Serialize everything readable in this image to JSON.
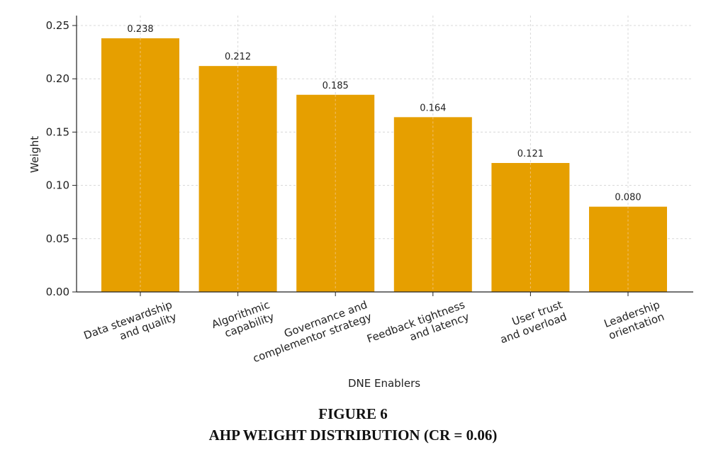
{
  "caption": {
    "figure_number": "FIGURE 6",
    "title": "AHP WEIGHT DISTRIBUTION (CR = 0.06)"
  },
  "chart_data": {
    "type": "bar",
    "categories": [
      [
        "Data stewardship",
        "and quality"
      ],
      [
        "Algorithmic",
        "capability"
      ],
      [
        "Governance and",
        "complementor strategy"
      ],
      [
        "Feedback tightness",
        "and latency"
      ],
      [
        "User trust",
        "and overload"
      ],
      [
        "Leadership",
        "orientation"
      ]
    ],
    "values": [
      0.238,
      0.212,
      0.185,
      0.164,
      0.121,
      0.08
    ],
    "value_labels": [
      "0.238",
      "0.212",
      "0.185",
      "0.164",
      "0.121",
      "0.080"
    ],
    "yticks": [
      "0.00",
      "0.05",
      "0.10",
      "0.15",
      "0.20",
      "0.25"
    ],
    "ytick_values": [
      0,
      0.05,
      0.1,
      0.15,
      0.2,
      0.25
    ],
    "ylim": [
      0,
      0.25
    ],
    "xlabel": "DNE Enablers",
    "ylabel": "Weight",
    "grid": true,
    "bar_color": "#E69F00",
    "grid_color": "#d8d8d8",
    "axis_color": "#222222"
  }
}
